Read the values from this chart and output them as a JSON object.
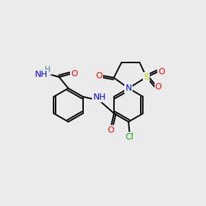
{
  "bg_color": "#ebebeb",
  "atom_colors": {
    "C": "#000000",
    "H": "#4a8080",
    "N": "#0000ff",
    "O": "#ff0000",
    "S": "#cccc00",
    "Cl": "#00aa00"
  },
  "bond_color": "#000000",
  "figsize": [
    3.0,
    3.0
  ],
  "dpi": 100,
  "xlim": [
    0,
    10
  ],
  "ylim": [
    0,
    10
  ]
}
